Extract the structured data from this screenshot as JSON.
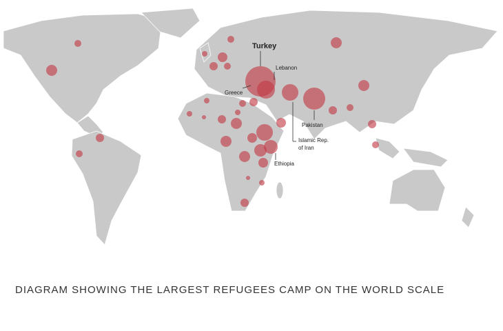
{
  "labels": {
    "turkey": "Turkey",
    "lebanon": "Lebanon",
    "greece": "Greece",
    "pakistan": "Pakistan",
    "iran_line1": "Islamic Rep.",
    "iran_line2": "of Iran",
    "ethiopia": "Ethiopia"
  },
  "caption": "DIAGRAM SHOWING THE LARGEST REFUGEES CAMP ON THE WORLD SCALE"
}
